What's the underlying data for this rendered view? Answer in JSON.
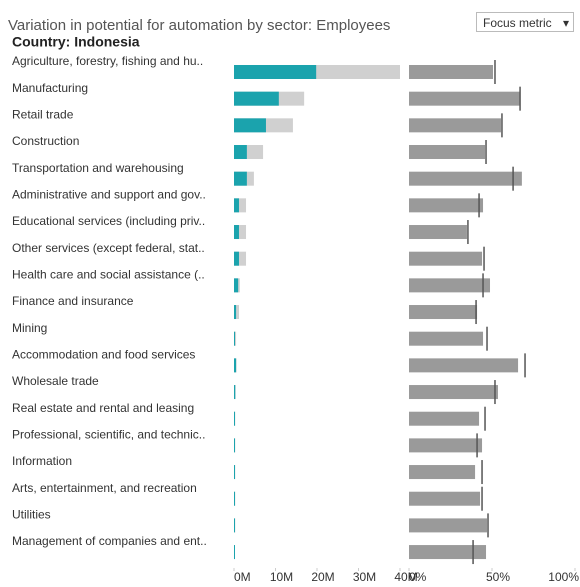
{
  "controls": {
    "focus_metric": "Focus metric"
  },
  "chart_data": [
    {
      "type": "overlay-bar",
      "title": "Variation in potential for automation by sector: Employees",
      "subtitle": "Country: Indonesia",
      "categories": [
        "Agriculture, forestry, fishing and hu..",
        "Manufacturing",
        "Retail trade",
        "Construction",
        "Transportation and warehousing",
        "Administrative and support and gov..",
        "Educational services (including priv..",
        "Other services (except federal, stat..",
        "Health care and social assistance (..",
        "Finance and insurance",
        "Mining",
        "Accommodation and food services",
        "Wholesale trade",
        "Real estate and rental and leasing",
        "Professional, scientific, and technic..",
        "Information",
        "Arts, entertainment, and recreation",
        "Utilities",
        "Management of companies and ent.."
      ],
      "series": [
        {
          "color": "#d0d0d0",
          "values": [
            40,
            16.9,
            14.2,
            7,
            4.8,
            2.9,
            2.9,
            2.9,
            1.4,
            1.2,
            0.5,
            0.6,
            0.4,
            0.3,
            0.3,
            0.3,
            0.3,
            0.3,
            0.2
          ]
        },
        {
          "color": "#1ba3ad",
          "values": [
            19.8,
            10.8,
            7.7,
            3.1,
            3.1,
            1.2,
            1.2,
            1.2,
            1,
            0.5,
            0.2,
            0.5,
            0.3,
            0.2,
            0.2,
            0.2,
            0.2,
            0.2,
            0.1
          ]
        }
      ],
      "xlim": [
        0,
        40
      ],
      "xticks": [
        {
          "value": 0,
          "label": "0M"
        },
        {
          "value": 10,
          "label": "10M"
        },
        {
          "value": 20,
          "label": "20M"
        },
        {
          "value": 30,
          "label": "30M"
        },
        {
          "value": 40,
          "label": "40M"
        }
      ]
    },
    {
      "type": "bar-reference",
      "series": [
        {
          "color": "#9a9a9a",
          "values": [
            50.6,
            66.9,
            55.4,
            45.8,
            68,
            44.6,
            34.9,
            44,
            48.8,
            41,
            44.6,
            65.7,
            53.6,
            42.2,
            44,
            39.8,
            42.8,
            47,
            46.4
          ]
        },
        {
          "color": "#555555",
          "values": [
            51.8,
            66.9,
            56,
            46.4,
            62.7,
            42.2,
            35.5,
            45.2,
            44.6,
            40.4,
            47,
            69.9,
            51.8,
            45.8,
            41,
            44,
            44,
            47.6,
            38.6
          ]
        }
      ],
      "xlim": [
        0,
        100
      ],
      "xticks": [
        {
          "value": 0,
          "label": "0%"
        },
        {
          "value": 50,
          "label": "50%"
        },
        {
          "value": 100,
          "label": "100%"
        }
      ]
    }
  ]
}
